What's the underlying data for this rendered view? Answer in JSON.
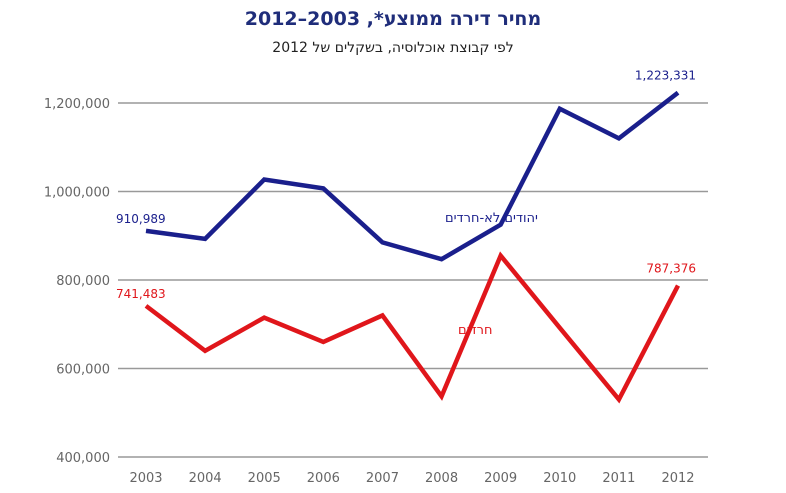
{
  "chart_data": {
    "type": "line",
    "title": "מחיר דירה ממוצע*, 2003–2012",
    "subtitle": "לפי קבוצת אוכלוסיה, בשקלים של 2012",
    "xlabel": "",
    "ylabel": "",
    "categories": [
      "2003",
      "2004",
      "2005",
      "2006",
      "2007",
      "2008",
      "2009",
      "2010",
      "2011",
      "2012"
    ],
    "ylim": [
      400000,
      1250000
    ],
    "yticks": [
      400000,
      600000,
      800000,
      1000000,
      1200000
    ],
    "ytick_labels": [
      "400,000",
      "600,000",
      "800,000",
      "1,000,000",
      "1,200,000"
    ],
    "grid": true,
    "series": [
      {
        "name": "יהודים לא-חרדים",
        "color": "#1a1f8c",
        "values": [
          910989,
          893000,
          1027000,
          1007000,
          885000,
          847000,
          925000,
          1187000,
          1120000,
          1223331
        ],
        "data_labels": {
          "first": "910,989",
          "last": "1,223,331"
        }
      },
      {
        "name": "חרדים",
        "color": "#e0161b",
        "values": [
          741483,
          640000,
          715000,
          660000,
          720000,
          537000,
          855000,
          692000,
          530000,
          787376
        ],
        "data_labels": {
          "first": "741,483",
          "last": "787,376"
        }
      }
    ]
  }
}
